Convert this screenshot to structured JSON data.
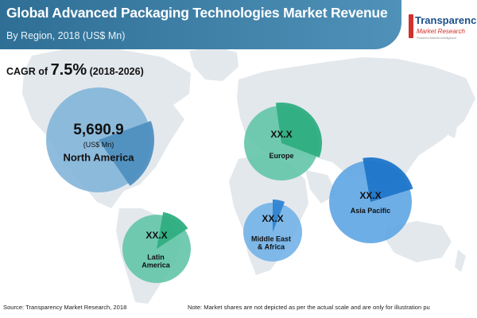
{
  "header": {
    "title": "Global Advanced Packaging Technologies Market Revenue",
    "subtitle": "By Region, 2018 (US$ Mn)"
  },
  "logo": {
    "name": "Transparenc",
    "sub": "Market Research",
    "tagline": "Powerful Market Intelligence"
  },
  "cagr": {
    "prefix": "CAGR of",
    "value": "7.5%",
    "period": "(2018-2026)"
  },
  "colors": {
    "header": "#2f6f95",
    "north_america": "#7fb3d8",
    "north_america_slice": "#4f8fc0",
    "europe": "#5fc4a6",
    "europe_slice": "#2fae82",
    "asia_pacific": "#5aa3e2",
    "asia_pacific_slice": "#1f76c9",
    "middle_east_africa": "#6fb0e8",
    "middle_east_africa_slice": "#2f84d1",
    "latin_america": "#5fc4a6",
    "latin_america_slice": "#2fae82",
    "map": "#e3e8ed"
  },
  "chart_data": {
    "type": "pie",
    "title": "Global Advanced Packaging Technologies Market Revenue",
    "subtitle": "By Region, 2018 (US$ Mn)",
    "unit": "(US$ Mn)",
    "regions": [
      {
        "name": "North America",
        "label": "North America",
        "value_text": "5,690.9",
        "value": 5690.9,
        "highlight_share": 0.21
      },
      {
        "name": "Europe",
        "label": "Europe",
        "value_text": "XX.X",
        "value": null,
        "highlight_share": 0.33
      },
      {
        "name": "Asia Pacific",
        "label": "Asia Pacific",
        "value_text": "XX.X",
        "value": null,
        "highlight_share": 0.23
      },
      {
        "name": "Middle East & Africa",
        "label": "Middle East & Africa",
        "label_lines": [
          "Middle East",
          "& Africa"
        ],
        "value_text": "XX.X",
        "value": null,
        "highlight_share": 0.06
      },
      {
        "name": "Latin America",
        "label": "Latin America",
        "label_lines": [
          "Latin",
          "America"
        ],
        "value_text": "XX.X",
        "value": null,
        "highlight_share": 0.13
      }
    ]
  },
  "footer": {
    "source": "Source: Transparency Market Research, 2018",
    "note": "Note: Market shares are not depicted as per the actual scale and are only for illustration pu"
  }
}
